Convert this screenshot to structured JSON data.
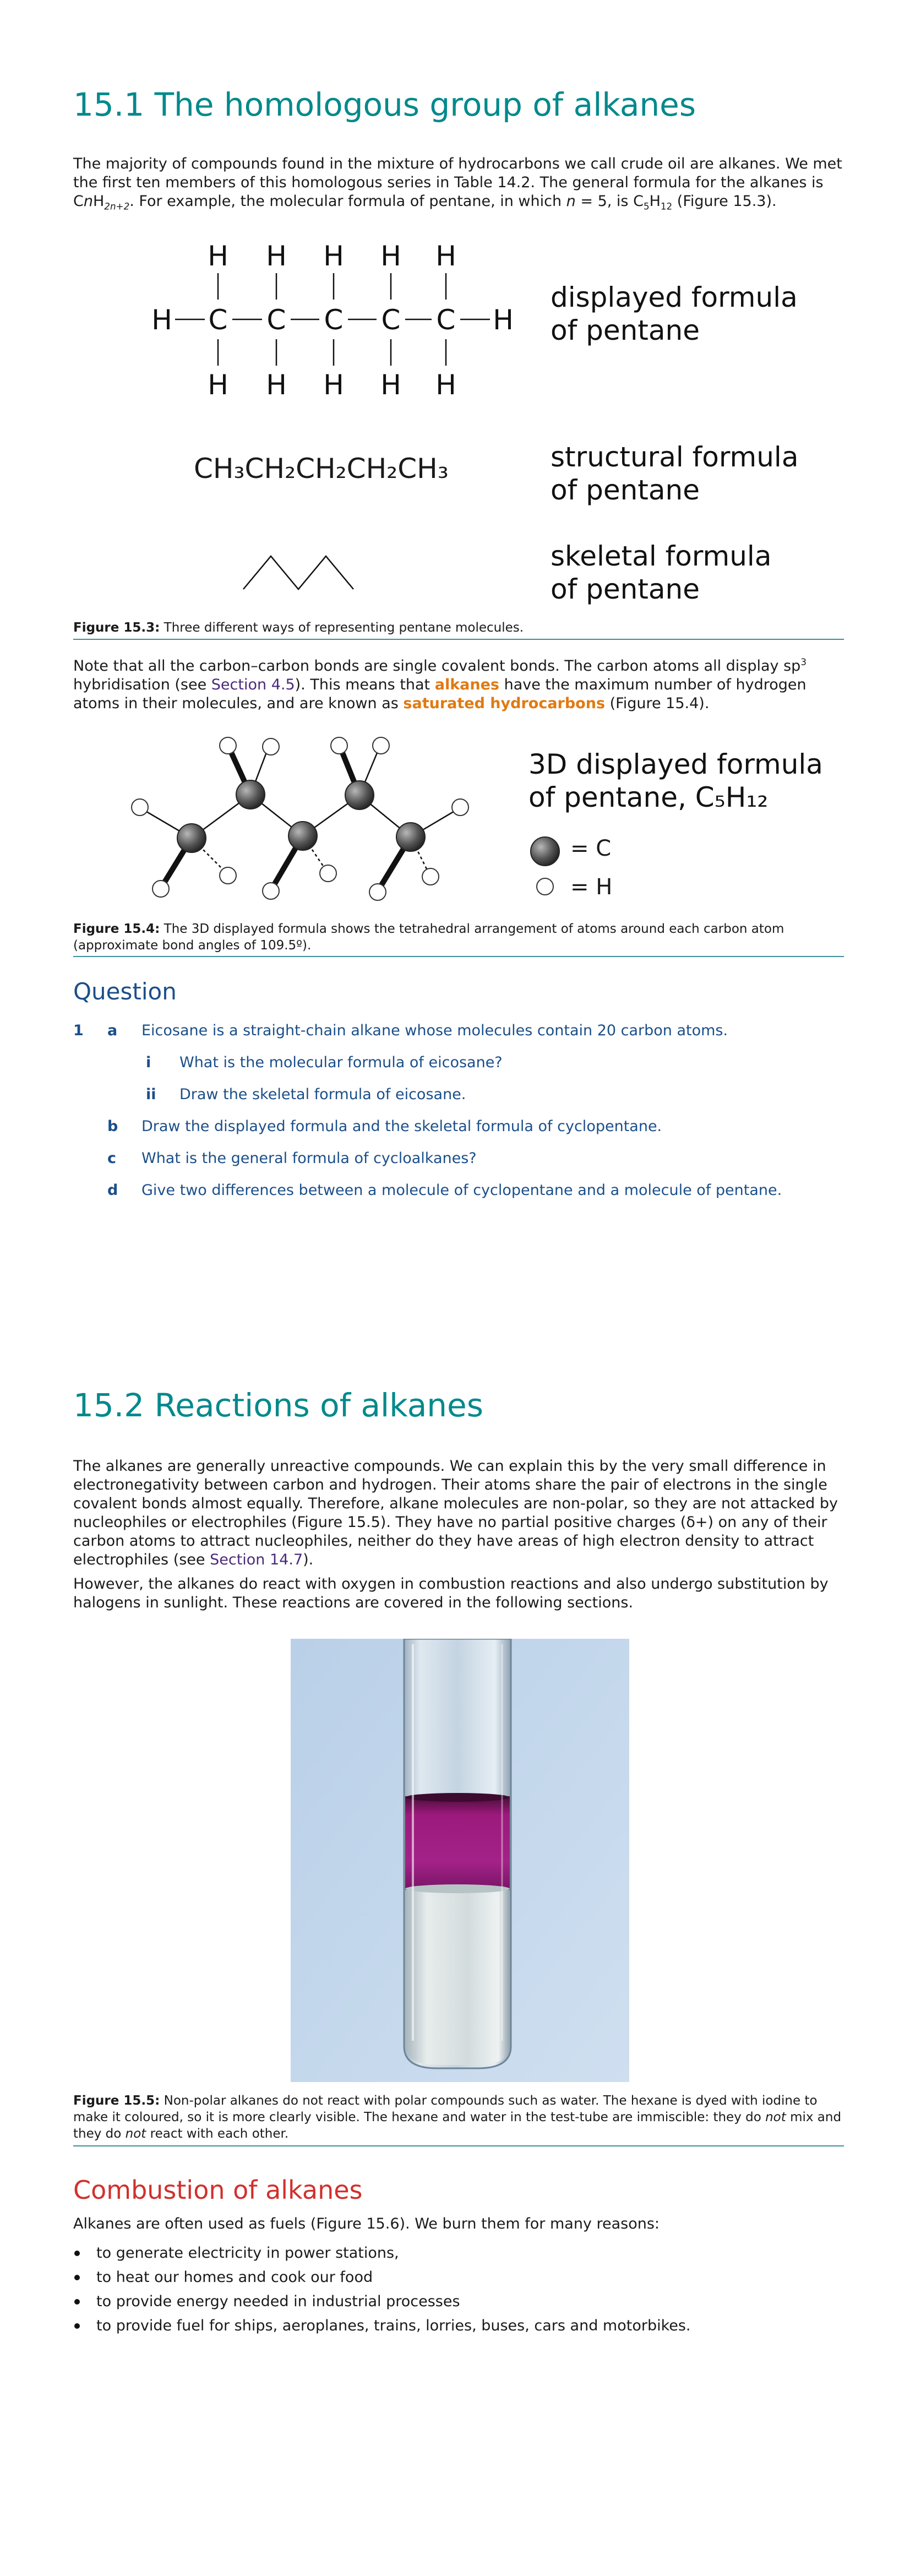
{
  "section1": {
    "title": "15.1 The homologous group of alkanes",
    "para1_a": "The majority of compounds found in the mixture of hydrocarbons we call crude oil are alkanes. We met the first ten members of this homologous series in Table 14.2. The general formula for the alkanes is C",
    "para1_n": "n",
    "para1_b": "H",
    "para1_sub": "2n+2",
    "para1_c": ". For example, the molecular formula of pentane, in which ",
    "para1_n2": "n",
    "para1_d": " = 5, is C",
    "para1_s5": "5",
    "para1_e": "H",
    "para1_s12": "12",
    "para1_f": " (Figure 15.3)."
  },
  "figure153": {
    "displayed_label_1": "displayed formula",
    "displayed_label_2": "of pentane",
    "structural_formula": "CH₃CH₂CH₂CH₂CH₃",
    "structural_label_1": "structural formula",
    "structural_label_2": "of pentane",
    "skeletal_label_1": "skeletal formula",
    "skeletal_label_2": "of pentane",
    "atom_C": "C",
    "atom_H": "H",
    "caption_bold": "Figure 15.3:",
    "caption_text": " Three different ways of representing pentane molecules."
  },
  "para2": {
    "a": "Note that all the carbon–carbon bonds are single covalent bonds. The carbon atoms all display sp",
    "sup": "3",
    "b": " hybridisation (see ",
    "link": "Section 4.5",
    "c": "). This means that ",
    "kw1": "alkanes",
    "d": " have the maximum number of hydrogen atoms in their molecules, and are known as ",
    "kw2": "saturated hydrocarbons",
    "e": " (Figure 15.4)."
  },
  "figure154": {
    "label_1": "3D displayed formula",
    "label_2": "of pentane, C₅H₁₂",
    "legend_C": "= C",
    "legend_H": "= H",
    "caption_bold": "Figure 15.4:",
    "caption_text": " The 3D displayed formula shows the tetrahedral arrangement of atoms around each carbon atom (approximate bond angles of 109.5º)."
  },
  "question": {
    "title": "Question",
    "num": "1",
    "a_label": "a",
    "a_text": "Eicosane is a straight-chain alkane whose molecules contain 20 carbon atoms.",
    "ai_label": "i",
    "ai_text": "What is the molecular formula of eicosane?",
    "aii_label": "ii",
    "aii_text": "Draw the skeletal formula of eicosane.",
    "b_label": "b",
    "b_text": "Draw the displayed formula and the skeletal formula of cyclopentane.",
    "c_label": "c",
    "c_text": "What is the general formula of cycloalkanes?",
    "d_label": "d",
    "d_text": "Give two differences between a molecule of cyclopentane and a molecule of pentane."
  },
  "section2": {
    "title": "15.2 Reactions of alkanes",
    "para1_a": "The alkanes are generally unreactive compounds. We can explain this by the very small difference in electronegativity between carbon and hydrogen. Their atoms share the pair of electrons in the single covalent bonds almost equally. Therefore, alkane molecules are non-polar, so they are not attacked by nucleophiles or electrophiles (Figure 15.5). They have no partial positive charges (δ+) on any of their carbon atoms to attract nucleophiles, neither do they have areas of high electron density to attract electrophiles (see ",
    "para1_link": "Section 14.7",
    "para1_b": ").",
    "para2": "However, the alkanes do react with oxygen in combustion reactions and also undergo substitution by halogens in sunlight. These reactions are covered in the following sections."
  },
  "figure155": {
    "caption_bold": "Figure 15.5:",
    "caption_a": " Non-polar alkanes do not react with polar compounds such as water. The hexane is dyed with iodine to make it coloured, so it is more clearly visible. The hexane and water in the test-tube are immiscible: they do ",
    "caption_not1": "not",
    "caption_b": " mix and they do ",
    "caption_not2": "not",
    "caption_c": " react with each other."
  },
  "combustion": {
    "title": "Combustion of alkanes",
    "intro": "Alkanes are often used as fuels (Figure 15.6). We burn them for many reasons:",
    "items": [
      "to generate electricity in power stations,",
      "to heat our homes and cook our food",
      "to provide energy needed in industrial processes",
      "to provide fuel for ships, aeroplanes, trains, lorries, buses, cars and motorbikes."
    ]
  }
}
